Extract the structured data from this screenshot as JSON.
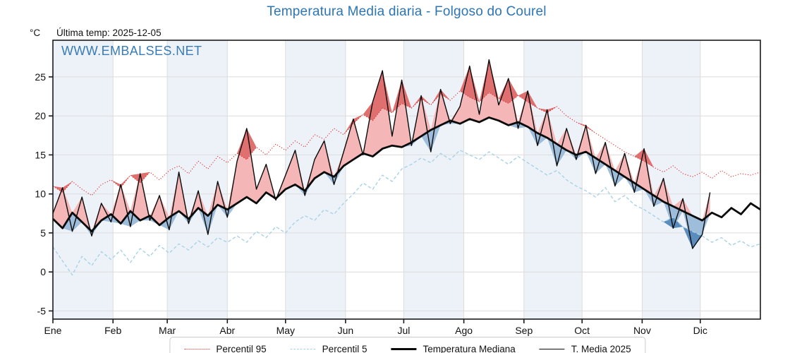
{
  "header": {
    "title": "Temperatura Media diaria - Folgoso do Courel",
    "unit_label": "°C",
    "last_temp_label": "Última temp: 2025-12-05"
  },
  "watermark": "WWW.EMBALSES.NET",
  "colors": {
    "accent": "#2e75b4",
    "p95_line": "#dd2c2c",
    "p5_line": "#a8d2e6",
    "median_line": "#0a0a0a",
    "t2025_line": "#0a0a0a",
    "fill_above_median": "#f4b6b6",
    "fill_above_p95": "#e06f6f",
    "fill_below_median": "#9dbdda",
    "fill_below_p5": "#5b8cbe",
    "month_stripe": "#edf2f9",
    "gridline": "#dcdcdc",
    "spine": "#1a1a1a"
  },
  "chart_data": {
    "type": "line",
    "title": "Temperatura Media diaria - Folgoso do Courel",
    "xlabel": "",
    "ylabel": "°C",
    "x_tick_labels": [
      "Ene",
      "Feb",
      "Mar",
      "Abr",
      "May",
      "Jun",
      "Jul",
      "Ago",
      "Sep",
      "Oct",
      "Nov",
      "Dic"
    ],
    "month_start_days": [
      0,
      31,
      59,
      90,
      120,
      151,
      181,
      212,
      243,
      273,
      304,
      334
    ],
    "days_in_year": 365,
    "y_ticks": [
      -5,
      0,
      5,
      10,
      15,
      20,
      25
    ],
    "y_range": [
      -6.05,
      29.7
    ],
    "grid": true,
    "legend_position": "bottom",
    "sample_step_days": 5,
    "series": [
      {
        "name": "Percentil 95",
        "style": "dotted-red",
        "end_day": 365,
        "values": [
          11.0,
          10.2,
          11.6,
          10.6,
          9.8,
          11.2,
          11.8,
          10.8,
          12.4,
          11.4,
          12.8,
          11.8,
          13.0,
          13.6,
          12.6,
          14.2,
          13.2,
          14.8,
          14.0,
          15.2,
          14.4,
          16.0,
          15.0,
          16.4,
          15.6,
          16.8,
          16.0,
          17.6,
          17.0,
          18.4,
          17.6,
          19.0,
          20.2,
          19.4,
          21.0,
          20.4,
          21.6,
          21.0,
          22.2,
          21.4,
          22.8,
          22.0,
          23.2,
          22.4,
          21.8,
          23.0,
          22.2,
          21.6,
          22.6,
          21.8,
          21.0,
          20.4,
          21.2,
          20.0,
          19.2,
          18.6,
          17.8,
          17.0,
          16.2,
          15.4,
          14.8,
          14.2,
          13.4,
          12.8,
          13.6,
          12.6,
          12.2,
          12.8,
          12.0,
          13.0,
          12.2,
          12.6,
          12.4,
          12.8
        ]
      },
      {
        "name": "Percentil 5",
        "style": "dashed-lightblue",
        "end_day": 365,
        "values": [
          3.2,
          1.4,
          -0.4,
          2.0,
          0.8,
          2.6,
          1.6,
          2.8,
          1.2,
          3.0,
          2.0,
          3.4,
          2.4,
          3.6,
          2.8,
          4.0,
          3.2,
          4.4,
          3.8,
          4.6,
          3.8,
          5.2,
          4.4,
          5.8,
          5.0,
          6.4,
          7.2,
          6.6,
          8.0,
          7.4,
          8.8,
          10.0,
          11.4,
          10.6,
          12.4,
          11.6,
          13.2,
          13.8,
          14.6,
          14.0,
          15.2,
          14.4,
          15.6,
          15.0,
          14.4,
          15.4,
          14.6,
          13.8,
          14.8,
          14.0,
          13.2,
          12.4,
          13.0,
          11.8,
          11.0,
          10.4,
          9.6,
          10.8,
          9.0,
          9.8,
          8.6,
          8.0,
          7.2,
          6.4,
          7.0,
          5.8,
          5.2,
          4.6,
          3.8,
          4.4,
          3.4,
          4.0,
          3.2,
          3.6
        ]
      },
      {
        "name": "Temperatura Mediana",
        "style": "thick-black",
        "end_day": 365,
        "values": [
          6.8,
          5.6,
          7.6,
          6.4,
          5.2,
          6.6,
          7.4,
          6.2,
          7.8,
          6.6,
          7.2,
          6.0,
          7.0,
          7.8,
          6.8,
          8.2,
          7.2,
          8.6,
          8.0,
          8.8,
          9.6,
          8.8,
          10.2,
          9.4,
          10.6,
          11.2,
          10.4,
          12.0,
          12.8,
          12.2,
          13.6,
          14.4,
          15.2,
          14.8,
          15.8,
          16.2,
          16.0,
          16.6,
          17.4,
          18.2,
          18.8,
          19.4,
          19.0,
          19.6,
          19.2,
          19.8,
          19.4,
          18.8,
          19.2,
          18.6,
          17.8,
          17.2,
          16.4,
          15.6,
          15.0,
          15.4,
          14.6,
          13.8,
          13.0,
          12.2,
          11.4,
          10.6,
          9.8,
          9.0,
          8.4,
          7.8,
          7.2,
          6.6,
          7.6,
          7.0,
          8.2,
          7.4,
          8.8,
          8.0
        ]
      },
      {
        "name": "T. Media 2025",
        "style": "thin-black",
        "end_day": 339,
        "values": [
          7.5,
          10.8,
          5.2,
          9.6,
          4.6,
          8.8,
          6.4,
          11.2,
          5.8,
          12.6,
          6.6,
          9.8,
          5.4,
          12.8,
          6.2,
          10.4,
          4.8,
          11.6,
          7.0,
          14.2,
          18.4,
          10.6,
          13.8,
          9.2,
          12.4,
          15.6,
          9.8,
          14.4,
          16.8,
          11.2,
          15.4,
          19.6,
          15.0,
          21.8,
          25.8,
          17.4,
          24.6,
          16.2,
          22.6,
          15.4,
          23.4,
          19.0,
          21.2,
          26.4,
          20.2,
          27.2,
          21.4,
          24.8,
          18.4,
          23.2,
          16.2,
          20.8,
          13.6,
          18.4,
          14.4,
          18.8,
          12.6,
          16.6,
          11.0,
          15.2,
          10.2,
          15.8,
          8.4,
          12.0,
          5.6,
          9.4,
          3.0,
          4.8,
          10.2
        ]
      }
    ],
    "legend": [
      {
        "label": "Percentil 95",
        "swatch": "dotted-red"
      },
      {
        "label": "Percentil 5",
        "swatch": "dashed-lightblue"
      },
      {
        "label": "Temperatura Mediana",
        "swatch": "thick-black"
      },
      {
        "label": "T. Media 2025",
        "swatch": "thin-black"
      }
    ]
  }
}
